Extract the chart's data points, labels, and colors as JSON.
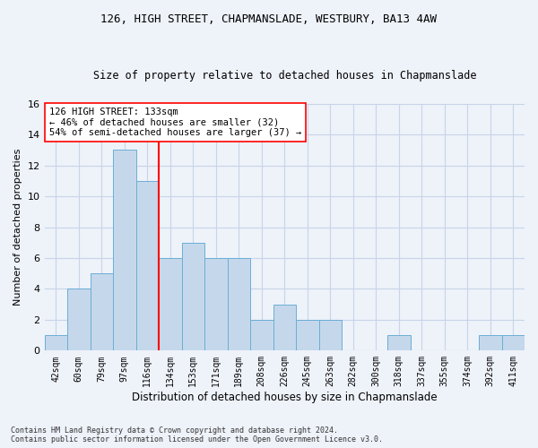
{
  "title1": "126, HIGH STREET, CHAPMANSLADE, WESTBURY, BA13 4AW",
  "title2": "Size of property relative to detached houses in Chapmanslade",
  "xlabel": "Distribution of detached houses by size in Chapmanslade",
  "ylabel": "Number of detached properties",
  "categories": [
    "42sqm",
    "60sqm",
    "79sqm",
    "97sqm",
    "116sqm",
    "134sqm",
    "153sqm",
    "171sqm",
    "189sqm",
    "208sqm",
    "226sqm",
    "245sqm",
    "263sqm",
    "282sqm",
    "300sqm",
    "318sqm",
    "337sqm",
    "355sqm",
    "374sqm",
    "392sqm",
    "411sqm"
  ],
  "values": [
    1,
    4,
    5,
    13,
    11,
    6,
    7,
    6,
    6,
    2,
    3,
    2,
    2,
    0,
    0,
    1,
    0,
    0,
    0,
    1,
    1
  ],
  "bar_color": "#c5d8eb",
  "bar_edge_color": "#6aaed6",
  "reference_line_x": 4.5,
  "annotation_line1": "126 HIGH STREET: 133sqm",
  "annotation_line2": "← 46% of detached houses are smaller (32)",
  "annotation_line3": "54% of semi-detached houses are larger (37) →",
  "ylim": [
    0,
    16
  ],
  "yticks": [
    0,
    2,
    4,
    6,
    8,
    10,
    12,
    14,
    16
  ],
  "footer_line1": "Contains HM Land Registry data © Crown copyright and database right 2024.",
  "footer_line2": "Contains public sector information licensed under the Open Government Licence v3.0.",
  "background_color": "#eef2f9",
  "grid_color": "#c8d4e8",
  "title1_fontsize": 9,
  "title2_fontsize": 8.5,
  "ylabel_fontsize": 8,
  "xlabel_fontsize": 8.5,
  "tick_fontsize": 7,
  "annot_fontsize": 7.5,
  "footer_fontsize": 6
}
